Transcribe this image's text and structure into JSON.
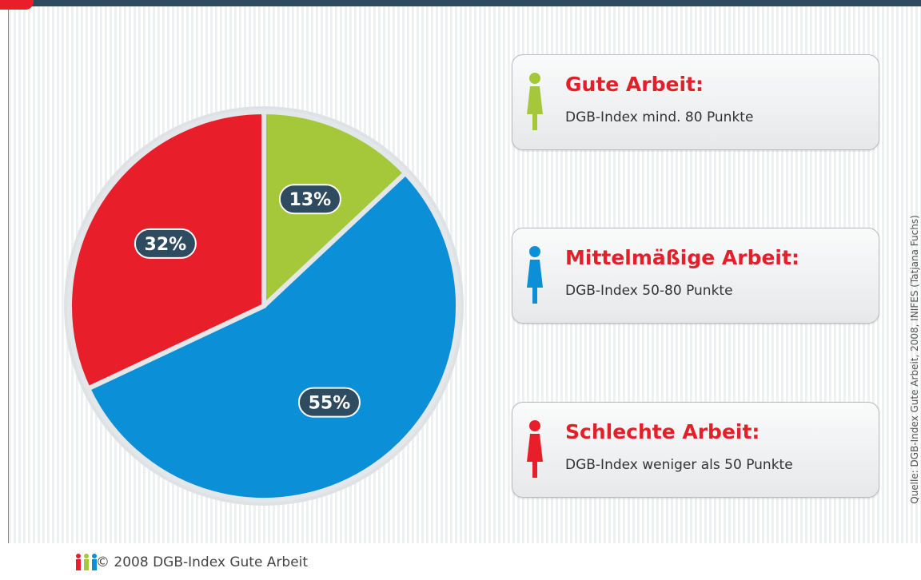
{
  "chart_data": {
    "type": "pie",
    "categories": [
      "Gute Arbeit:",
      "Mittelmäßige Arbeit:",
      "Schlechte Arbeit:"
    ],
    "descriptions": [
      "DGB-Index mind. 80 Punkte",
      "DGB-Index 50-80 Punkte",
      "DGB-Index weniger als 50 Punkte"
    ],
    "values": [
      13,
      55,
      32
    ],
    "value_labels": [
      "13%",
      "55%",
      "32%"
    ],
    "colors": [
      "#a5c83b",
      "#0b8fd6",
      "#e81f2a"
    ],
    "source": "Quelle: DGB-Index Gute Arbeit, 2008, INIFES (Tatjana Fuchs)",
    "footer": "© 2008 DGB-Index Gute Arbeit"
  }
}
